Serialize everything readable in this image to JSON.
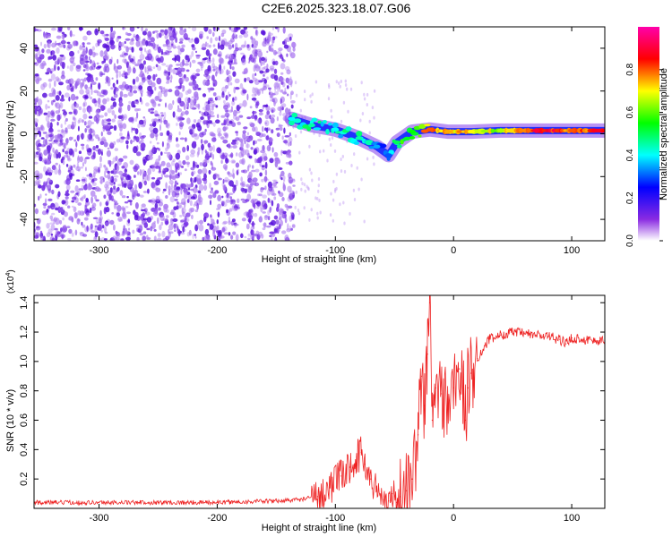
{
  "title": "C2E6.2025.323.18.07.G06",
  "chart_data": [
    {
      "type": "heatmap",
      "xlabel": "Height of straight line (km)",
      "ylabel": "Frequency (Hz)",
      "xlim": [
        -355,
        128
      ],
      "ylim": [
        -50,
        50
      ],
      "xticks": [
        -300,
        -200,
        -100,
        0,
        100
      ],
      "yticks": [
        -40,
        -20,
        0,
        20,
        40
      ],
      "colorbar": {
        "label": "Normalized spectral amplitude",
        "range": [
          0.0,
          1.0
        ],
        "ticks": [
          "0.0",
          "0.2",
          "0.4",
          "0.6",
          "0.8"
        ],
        "colors": [
          "#ffffff",
          "#8a2be2",
          "#0000ff",
          "#00ffff",
          "#00ff00",
          "#ffff00",
          "#ff0000",
          "#ff00aa"
        ]
      },
      "noise_region": {
        "x_from": -355,
        "x_to": -135,
        "freq_from": -50,
        "freq_to": 50,
        "amplitude": 0.1
      },
      "signal_track": [
        {
          "x": -137,
          "freq": 7,
          "amplitude": 0.4
        },
        {
          "x": -120,
          "freq": 4,
          "amplitude": 0.45
        },
        {
          "x": -100,
          "freq": 2,
          "amplitude": 0.4
        },
        {
          "x": -80,
          "freq": -2,
          "amplitude": 0.45
        },
        {
          "x": -65,
          "freq": -6,
          "amplitude": 0.35
        },
        {
          "x": -55,
          "freq": -10,
          "amplitude": 0.3
        },
        {
          "x": -48,
          "freq": -4,
          "amplitude": 0.5
        },
        {
          "x": -35,
          "freq": 1,
          "amplitude": 0.55
        },
        {
          "x": -20,
          "freq": 2,
          "amplitude": 0.8
        },
        {
          "x": -5,
          "freq": 1,
          "amplitude": 0.75
        },
        {
          "x": 15,
          "freq": 1,
          "amplitude": 0.7
        },
        {
          "x": 40,
          "freq": 1.5,
          "amplitude": 0.65
        },
        {
          "x": 70,
          "freq": 1.5,
          "amplitude": 0.9
        },
        {
          "x": 100,
          "freq": 1.5,
          "amplitude": 0.8
        },
        {
          "x": 128,
          "freq": 1.5,
          "amplitude": 0.85
        }
      ]
    },
    {
      "type": "line",
      "xlabel": "Height of straight line (km)",
      "ylabel": "SNR (10 * v/v)",
      "yscale_label": "(x10",
      "yscale_exp": "4",
      "yscale_close": ")",
      "xlim": [
        -355,
        128
      ],
      "ylim": [
        0,
        1.45
      ],
      "xticks": [
        -300,
        -200,
        -100,
        0,
        100
      ],
      "yticks": [
        0.2,
        0.4,
        0.6,
        0.8,
        1.0,
        1.2,
        1.4
      ],
      "series": [
        {
          "name": "SNR",
          "color": "#ee2222",
          "x": [
            -355,
            -300,
            -250,
            -200,
            -150,
            -130,
            -115,
            -105,
            -95,
            -88,
            -82,
            -78,
            -75,
            -70,
            -65,
            -60,
            -55,
            -52,
            -48,
            -45,
            -40,
            -35,
            -30,
            -27,
            -25,
            -22,
            -20,
            -18,
            -15,
            -10,
            -5,
            0,
            5,
            8,
            10,
            12,
            15,
            20,
            25,
            30,
            40,
            50,
            60,
            70,
            80,
            90,
            95,
            100,
            110,
            120,
            128
          ],
          "values": [
            0.04,
            0.04,
            0.04,
            0.04,
            0.05,
            0.06,
            0.08,
            0.14,
            0.22,
            0.28,
            0.35,
            0.38,
            0.3,
            0.2,
            0.12,
            0.06,
            0.05,
            0.1,
            0.04,
            0.08,
            0.12,
            0.2,
            0.5,
            0.9,
            0.7,
            1.05,
            1.4,
            0.6,
            0.82,
            0.78,
            0.7,
            0.82,
            0.95,
            0.8,
            0.6,
            0.82,
            0.92,
            1.02,
            1.08,
            1.15,
            1.18,
            1.2,
            1.19,
            1.18,
            1.17,
            1.15,
            1.12,
            1.16,
            1.15,
            1.14,
            1.14
          ]
        }
      ]
    }
  ]
}
